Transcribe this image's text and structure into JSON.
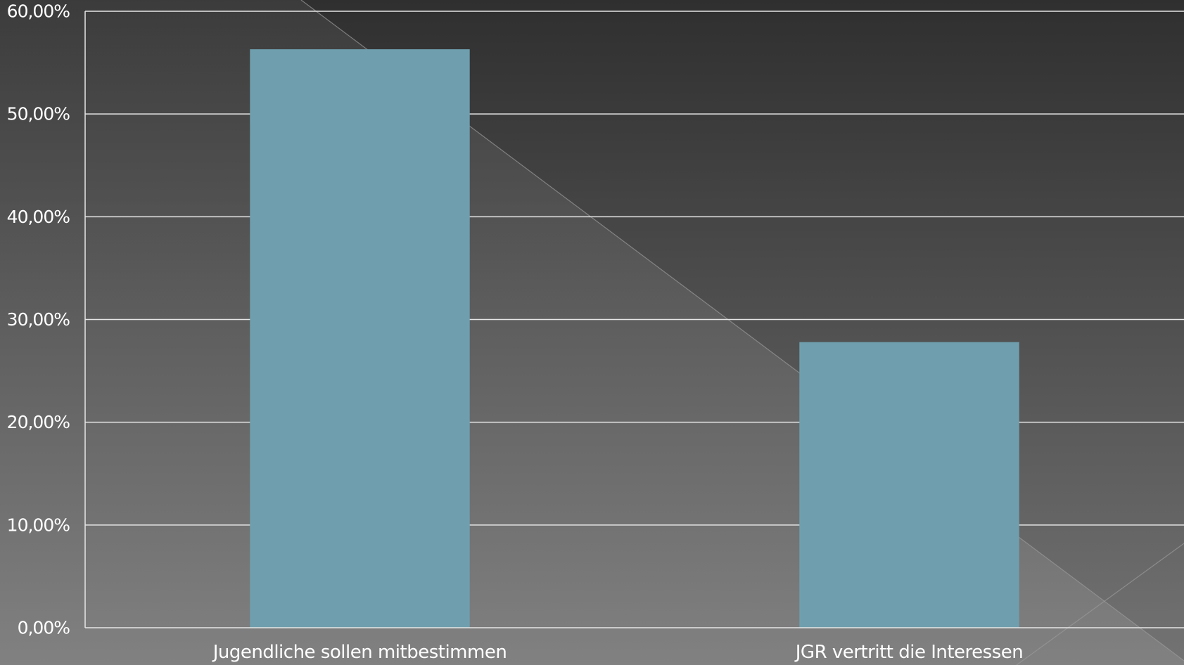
{
  "chart_data": {
    "type": "bar",
    "categories": [
      "Jugendliche sollen mitbestimmen",
      "JGR vertritt die Interessen"
    ],
    "series": [
      {
        "values": [
          0.563,
          0.278
        ]
      }
    ],
    "ylim": [
      0,
      0.6
    ],
    "y_ticks": [
      0,
      0.1,
      0.2,
      0.3,
      0.4,
      0.5,
      0.6
    ],
    "y_tick_labels": [
      "0,00%",
      "10,00%",
      "20,00%",
      "30,00%",
      "40,00%",
      "50,00%",
      "60,00%"
    ],
    "grid": true,
    "legend": "none"
  },
  "colors": {
    "bar": "#6f9fae",
    "gridline": "#e6e6e6",
    "text": "#ffffff",
    "background_top": "#2f2f2f",
    "background_bottom": "#737373"
  }
}
